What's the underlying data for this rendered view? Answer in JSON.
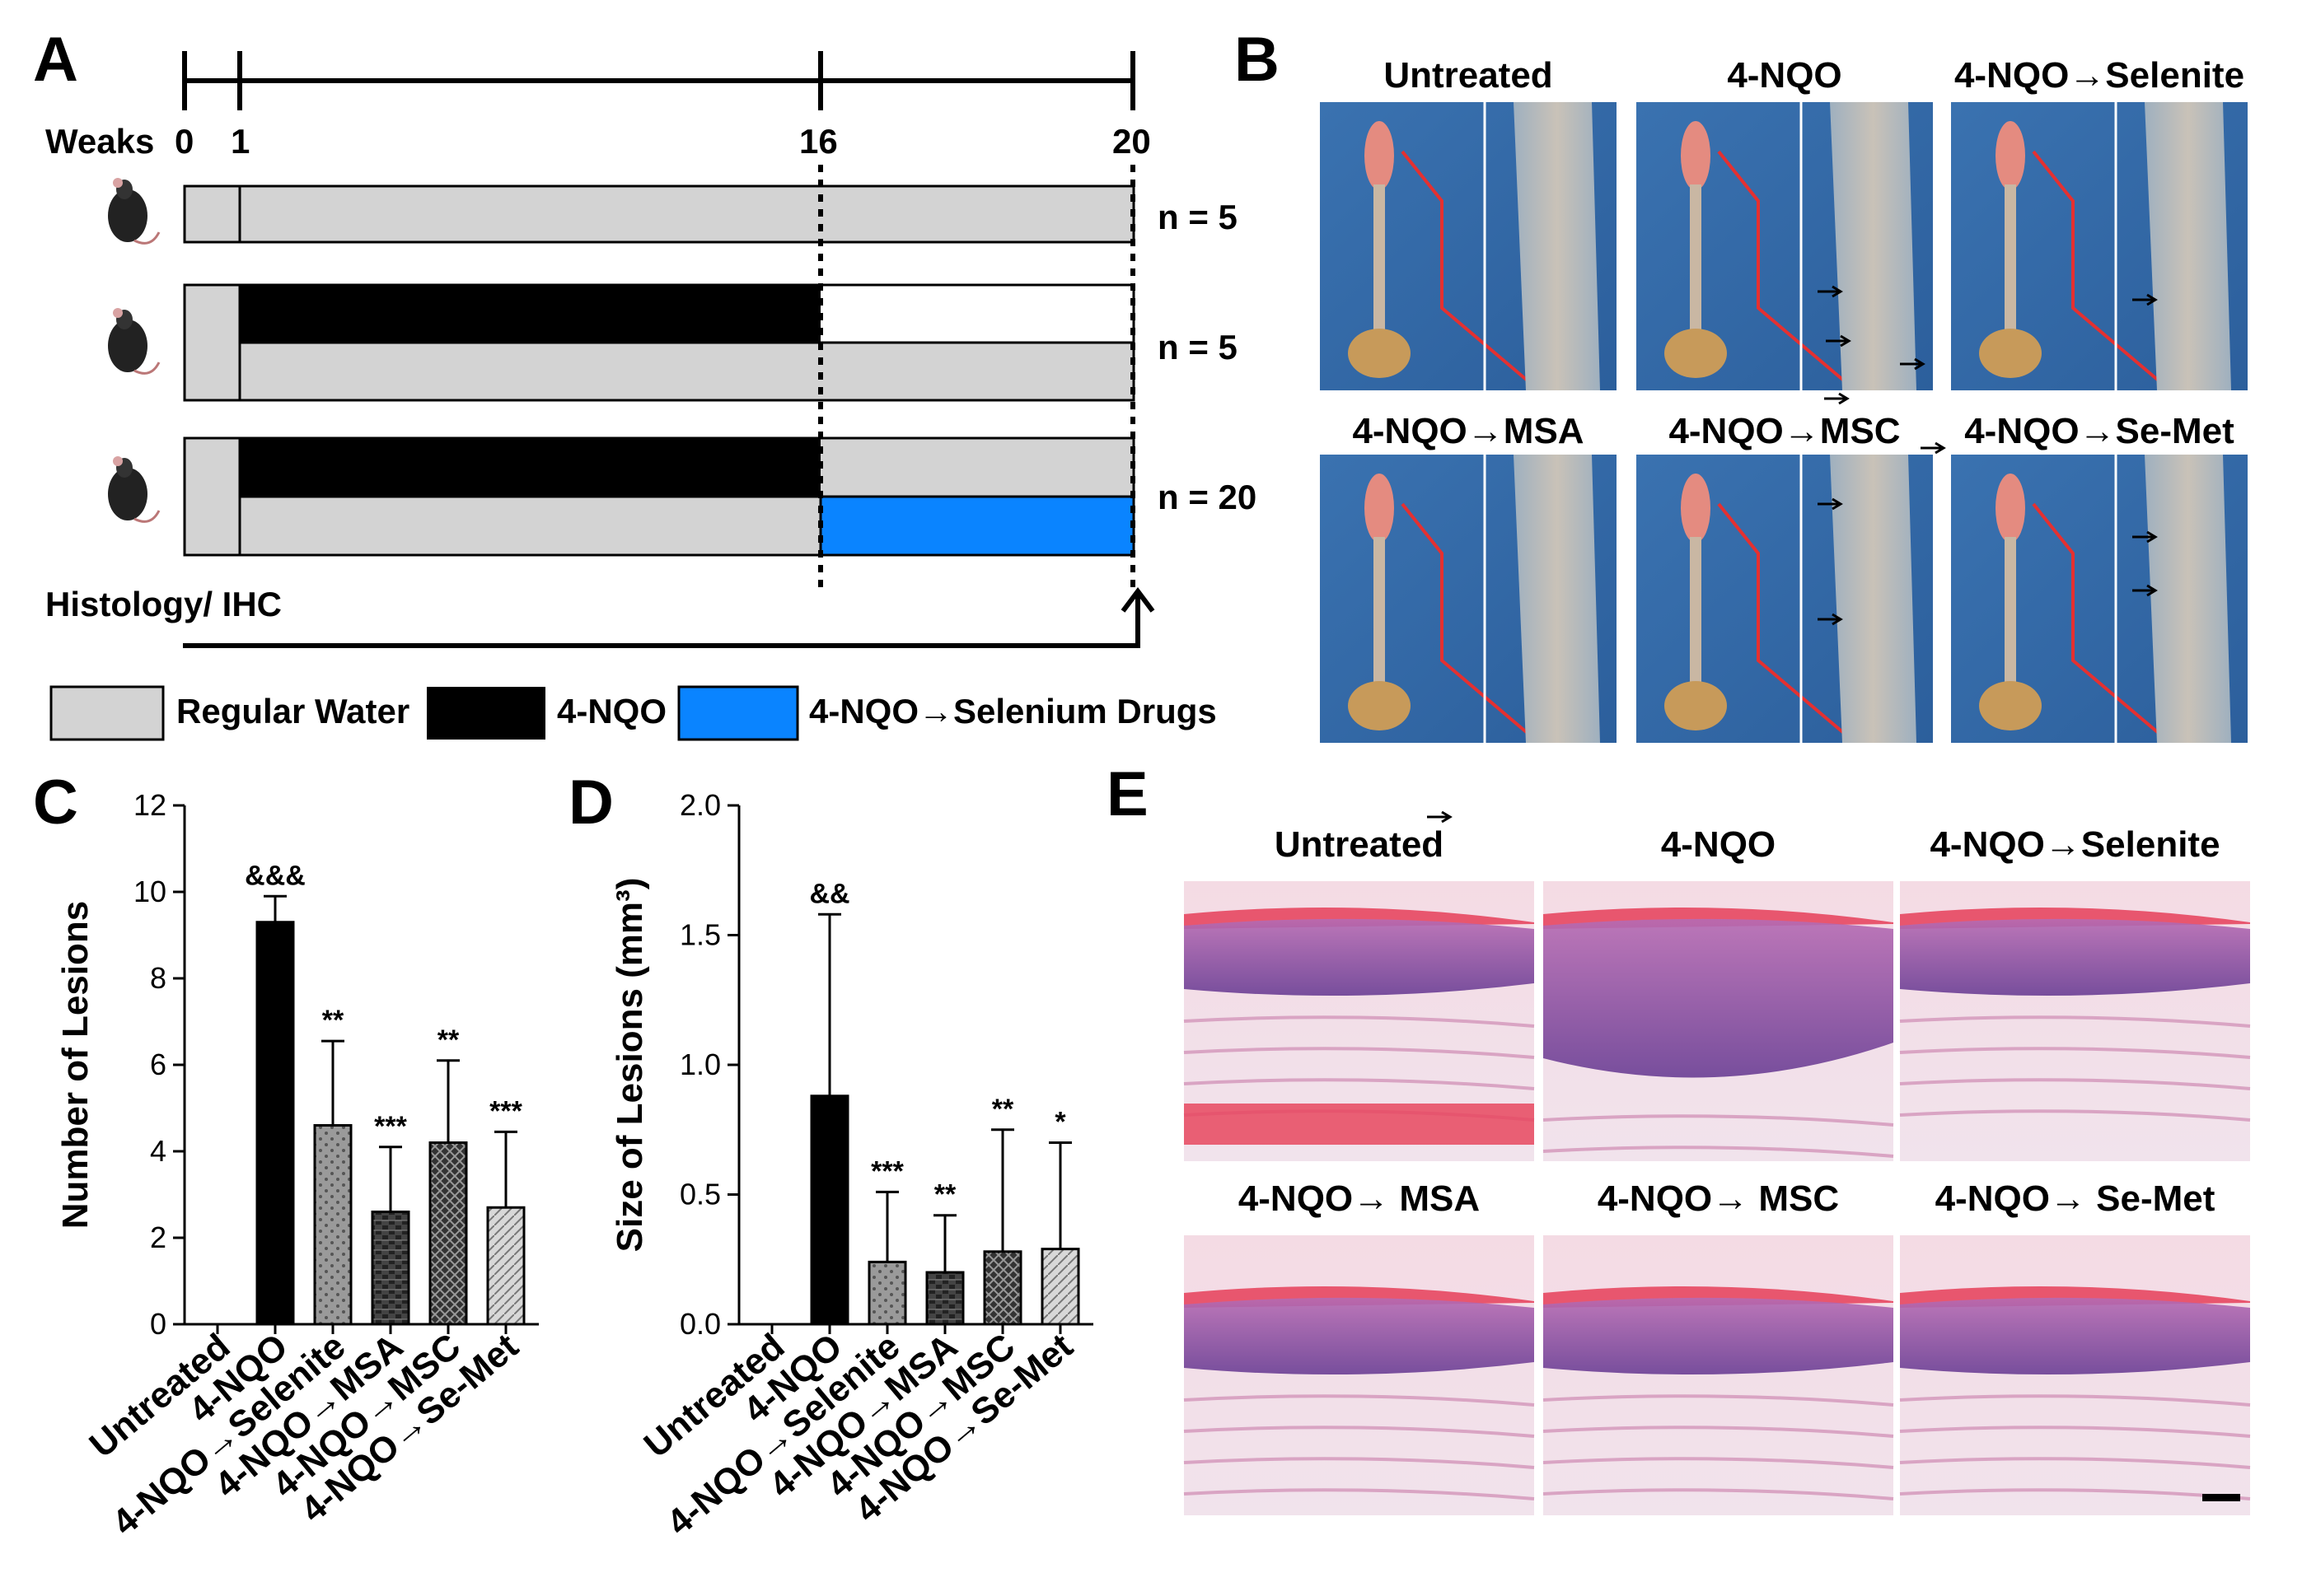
{
  "figure": {
    "panel_labels": [
      "A",
      "B",
      "C",
      "D",
      "E"
    ],
    "timeline": {
      "axis_label": "Weaks",
      "week_ticks": [
        "0",
        "1",
        "16",
        "20"
      ],
      "weeks": [
        0,
        1,
        16,
        20
      ],
      "groups": [
        {
          "n_label": "n = 5"
        },
        {
          "n_label": "n = 5"
        },
        {
          "n_label": "n = 20"
        }
      ],
      "endpoint_label": "Histology/ IHC",
      "legend": [
        {
          "label": "Regular Water",
          "color": "#d3d3d3"
        },
        {
          "label": "4-NQO",
          "color": "#000000"
        },
        {
          "label": "4-NQO→Selenium Drugs",
          "color": "#0a84ff"
        }
      ]
    },
    "gross_titles": [
      "Untreated",
      "4-NQO",
      "4-NQO→Selenite",
      "4-NQO→MSA",
      "4-NQO→MSC",
      "4-NQO→Se-Met"
    ],
    "histology_titles": [
      "Untreated",
      "4-NQO",
      "4-NQO→Selenite",
      "4-NQO→ MSA",
      "4-NQO→ MSC",
      "4-NQO→ Se-Met"
    ]
  },
  "chart_data": [
    {
      "type": "bar",
      "panel": "C",
      "ylabel": "Number of Lesions",
      "ylim": [
        0,
        12
      ],
      "yticks": [
        "0",
        "2",
        "4",
        "6",
        "8",
        "10",
        "12"
      ],
      "categories": [
        "Untreated",
        "4-NQO",
        "4-NQO→Selenite",
        "4-NQO→MSA",
        "4-NQO→MSC",
        "4-NQO→Se-Met"
      ],
      "values": [
        0,
        9.3,
        4.6,
        2.6,
        4.2,
        2.7
      ],
      "errors": [
        0,
        0.6,
        1.95,
        1.5,
        1.9,
        1.75
      ],
      "significance": [
        "",
        "&&&",
        "**",
        "***",
        "**",
        "***"
      ]
    },
    {
      "type": "bar",
      "panel": "D",
      "ylabel": "Size of Lesions (mm³)",
      "ylim": [
        0,
        2.0
      ],
      "yticks": [
        "0.0",
        "0.5",
        "1.0",
        "1.5",
        "2.0"
      ],
      "categories": [
        "Untreated",
        "4-NQO",
        "4-NQO→Selenite",
        "4-NQO→MSA",
        "4-NQO→MSC",
        "4-NQO→Se-Met"
      ],
      "values": [
        0,
        0.88,
        0.24,
        0.2,
        0.28,
        0.29
      ],
      "errors": [
        0,
        0.7,
        0.27,
        0.22,
        0.47,
        0.41
      ],
      "significance": [
        "",
        "&&",
        "***",
        "**",
        "**",
        "*"
      ]
    }
  ]
}
